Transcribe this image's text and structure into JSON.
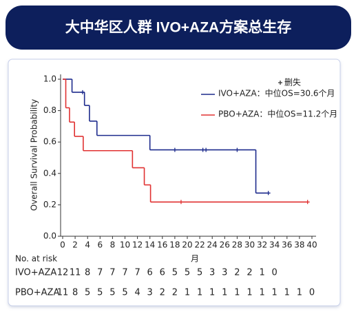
{
  "header": {
    "title": "大中华区人群 IVO+AZA方案总生存"
  },
  "chart_data": {
    "type": "km",
    "ylabel": "Overall Survival Probability",
    "xlabel": "月",
    "xlim": [
      0,
      40
    ],
    "xticks": [
      0,
      2,
      4,
      6,
      8,
      10,
      12,
      14,
      16,
      18,
      20,
      22,
      24,
      26,
      28,
      30,
      32,
      34,
      36,
      38,
      40
    ],
    "ylim": [
      0,
      1
    ],
    "yticks": [
      {
        "value": 0,
        "label": "0.0"
      },
      0.2,
      0.4,
      0.6,
      0.8,
      {
        "value": 1,
        "label": "1.0"
      }
    ],
    "censor_label": "删失",
    "risk_table_title": "No. at risk",
    "series": [
      {
        "name": "IVO+AZA",
        "legend": "IVO+AZA：中位OS=30.6个月",
        "color": "#1c2a8c",
        "risk_color": "#2a3a9a",
        "x": [
          0,
          1.5,
          3.5,
          4.3,
          5.5,
          14,
          31,
          33
        ],
        "values": [
          1.0,
          0.917,
          0.833,
          0.733,
          0.642,
          0.55,
          0.275,
          0.275
        ],
        "censor_x": [
          3.2,
          18,
          22.5,
          23,
          28,
          33
        ],
        "censor_values": [
          0.917,
          0.55,
          0.55,
          0.55,
          0.55,
          0.275
        ],
        "at_risk": [
          12,
          11,
          8,
          7,
          7,
          7,
          7,
          6,
          6,
          5,
          5,
          5,
          3,
          3,
          2,
          2,
          1,
          0
        ]
      },
      {
        "name": "PBO+AZA",
        "legend": "PBO+AZA：中位OS=11.2个月",
        "color": "#e03030",
        "risk_color": "#e0603a",
        "x": [
          0,
          0.5,
          1.1,
          1.9,
          3.3,
          11.2,
          13.1,
          14.1,
          39.3
        ],
        "values": [
          1.0,
          0.818,
          0.727,
          0.636,
          0.545,
          0.436,
          0.327,
          0.218,
          0.218
        ],
        "censor_x": [
          19,
          39.3
        ],
        "censor_values": [
          0.218,
          0.218
        ],
        "at_risk": [
          11,
          8,
          5,
          5,
          5,
          5,
          4,
          3,
          2,
          2,
          1,
          1,
          1,
          1,
          1,
          1,
          1,
          1,
          1,
          1,
          0
        ]
      }
    ]
  }
}
